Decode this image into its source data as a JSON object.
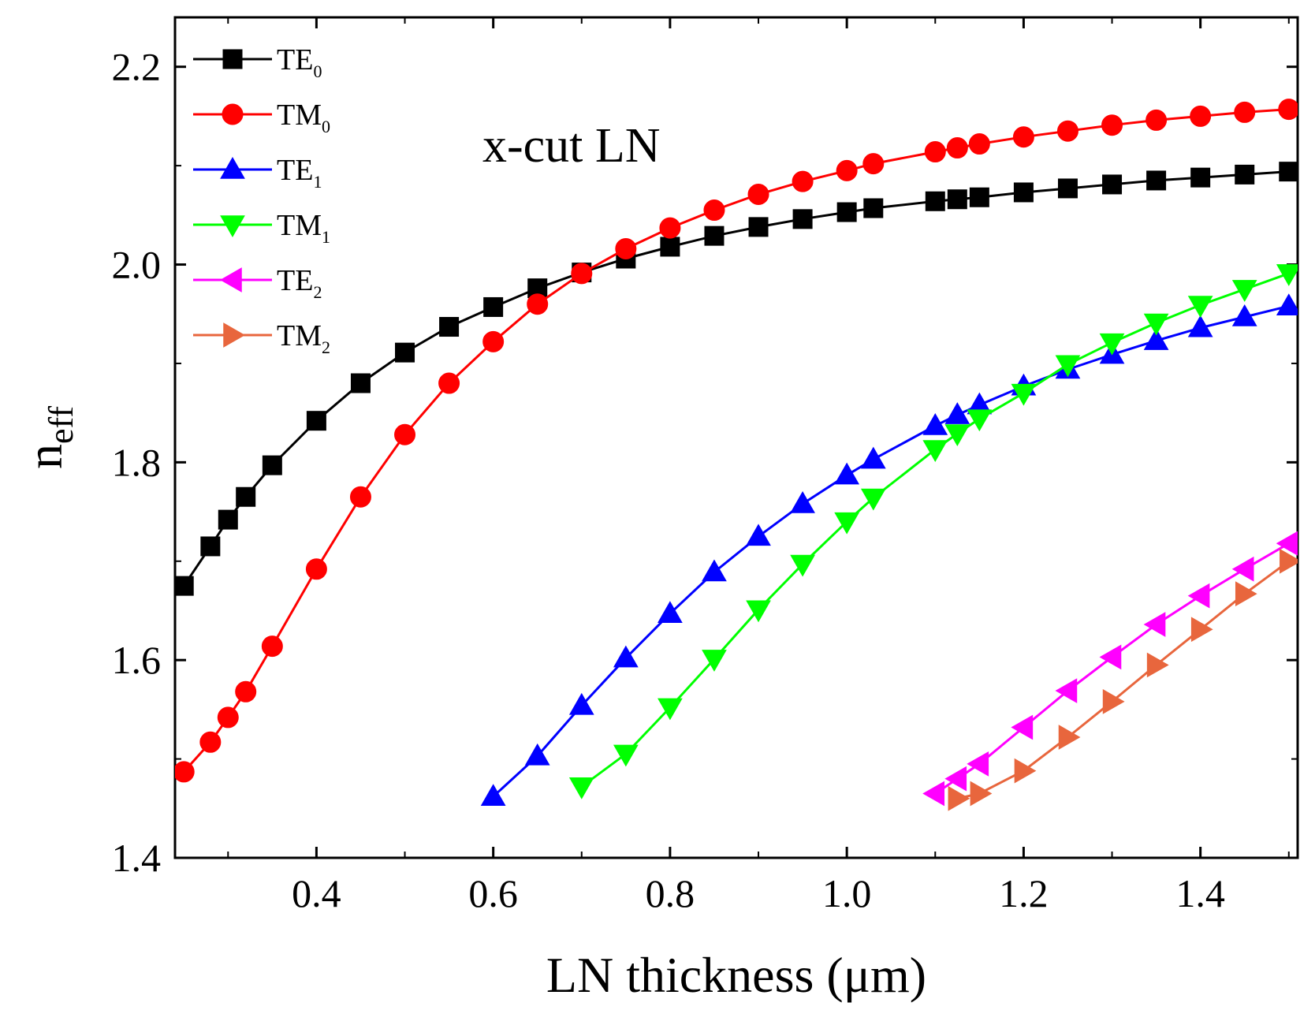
{
  "chart_data": {
    "type": "line",
    "title": "",
    "annotation": "x-cut LN",
    "xlabel": "LN thickness (μm)",
    "ylabel": "n",
    "ylabel_sub": "eff",
    "xlim": [
      0.24,
      1.51
    ],
    "ylim": [
      1.4,
      2.25
    ],
    "xticks": [
      0.4,
      0.6,
      0.8,
      1.0,
      1.2,
      1.4
    ],
    "xtick_labels": [
      "0.4",
      "0.6",
      "0.8",
      "1.0",
      "1.2",
      "1.4"
    ],
    "yticks": [
      1.4,
      1.6,
      1.8,
      2.0,
      2.2
    ],
    "ytick_labels": [
      "1.4",
      "1.6",
      "1.8",
      "2.0",
      "2.2"
    ],
    "legend_position": "top-left",
    "series": [
      {
        "name": "TE",
        "sub": "0",
        "color": "#000000",
        "marker": "square",
        "x": [
          0.25,
          0.28,
          0.3,
          0.32,
          0.35,
          0.4,
          0.45,
          0.5,
          0.55,
          0.6,
          0.65,
          0.7,
          0.75,
          0.8,
          0.85,
          0.9,
          0.95,
          1.0,
          1.03,
          1.1,
          1.125,
          1.15,
          1.2,
          1.25,
          1.3,
          1.35,
          1.4,
          1.45,
          1.5
        ],
        "y": [
          1.675,
          1.715,
          1.742,
          1.765,
          1.797,
          1.842,
          1.88,
          1.911,
          1.937,
          1.957,
          1.976,
          1.992,
          2.006,
          2.018,
          2.029,
          2.038,
          2.046,
          2.053,
          2.057,
          2.064,
          2.066,
          2.068,
          2.073,
          2.077,
          2.081,
          2.085,
          2.088,
          2.091,
          2.094
        ]
      },
      {
        "name": "TM",
        "sub": "0",
        "color": "#ff0000",
        "marker": "circle",
        "x": [
          0.25,
          0.28,
          0.3,
          0.32,
          0.35,
          0.4,
          0.45,
          0.5,
          0.55,
          0.6,
          0.65,
          0.7,
          0.75,
          0.8,
          0.85,
          0.9,
          0.95,
          1.0,
          1.03,
          1.1,
          1.125,
          1.15,
          1.2,
          1.25,
          1.3,
          1.35,
          1.4,
          1.45,
          1.5
        ],
        "y": [
          1.487,
          1.517,
          1.542,
          1.568,
          1.614,
          1.692,
          1.765,
          1.828,
          1.88,
          1.922,
          1.96,
          1.991,
          2.016,
          2.037,
          2.055,
          2.071,
          2.084,
          2.095,
          2.102,
          2.114,
          2.118,
          2.122,
          2.129,
          2.135,
          2.141,
          2.146,
          2.15,
          2.154,
          2.157
        ]
      },
      {
        "name": "TE",
        "sub": "1",
        "color": "#0000ff",
        "marker": "triangle-up",
        "x": [
          0.6,
          0.65,
          0.7,
          0.75,
          0.8,
          0.85,
          0.9,
          0.95,
          1.0,
          1.03,
          1.1,
          1.125,
          1.15,
          1.2,
          1.25,
          1.3,
          1.35,
          1.4,
          1.45,
          1.5
        ],
        "y": [
          1.462,
          1.503,
          1.554,
          1.602,
          1.647,
          1.689,
          1.725,
          1.758,
          1.787,
          1.803,
          1.837,
          1.848,
          1.858,
          1.877,
          1.894,
          1.909,
          1.923,
          1.936,
          1.947,
          1.958
        ]
      },
      {
        "name": "TM",
        "sub": "1",
        "color": "#00ff00",
        "marker": "triangle-down",
        "x": [
          0.7,
          0.75,
          0.8,
          0.85,
          0.9,
          0.95,
          1.0,
          1.03,
          1.1,
          1.125,
          1.15,
          1.2,
          1.25,
          1.3,
          1.35,
          1.4,
          1.45,
          1.5
        ],
        "y": [
          1.472,
          1.505,
          1.552,
          1.601,
          1.651,
          1.697,
          1.74,
          1.764,
          1.813,
          1.829,
          1.844,
          1.87,
          1.899,
          1.921,
          1.941,
          1.959,
          1.975,
          1.991
        ]
      },
      {
        "name": "TE",
        "sub": "2",
        "color": "#ff00ff",
        "marker": "triangle-left",
        "x": [
          1.1,
          1.125,
          1.15,
          1.2,
          1.25,
          1.3,
          1.35,
          1.4,
          1.45,
          1.5
        ],
        "y": [
          1.465,
          1.48,
          1.495,
          1.532,
          1.569,
          1.603,
          1.636,
          1.665,
          1.692,
          1.718
        ]
      },
      {
        "name": "TM",
        "sub": "2",
        "color": "#e8663d",
        "marker": "triangle-right",
        "x": [
          1.125,
          1.15,
          1.2,
          1.25,
          1.3,
          1.35,
          1.4,
          1.45,
          1.5
        ],
        "y": [
          1.46,
          1.465,
          1.488,
          1.522,
          1.558,
          1.595,
          1.631,
          1.667,
          1.7
        ]
      }
    ]
  }
}
